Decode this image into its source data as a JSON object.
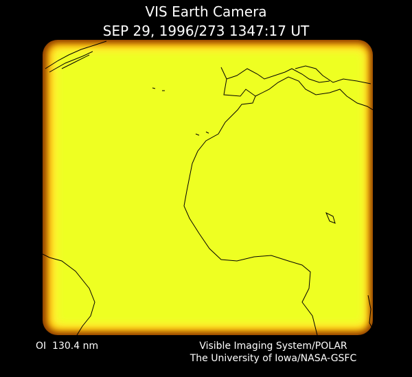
{
  "header": {
    "title": "VIS Earth Camera",
    "timestamp": "SEP 29, 1996/273 1347:17 UT"
  },
  "footer": {
    "filter": "OI  130.4 nm",
    "credit_line_1": "Visible Imaging System/POLAR",
    "credit_line_2": "The University of Iowa/NASA-GSFC"
  }
}
